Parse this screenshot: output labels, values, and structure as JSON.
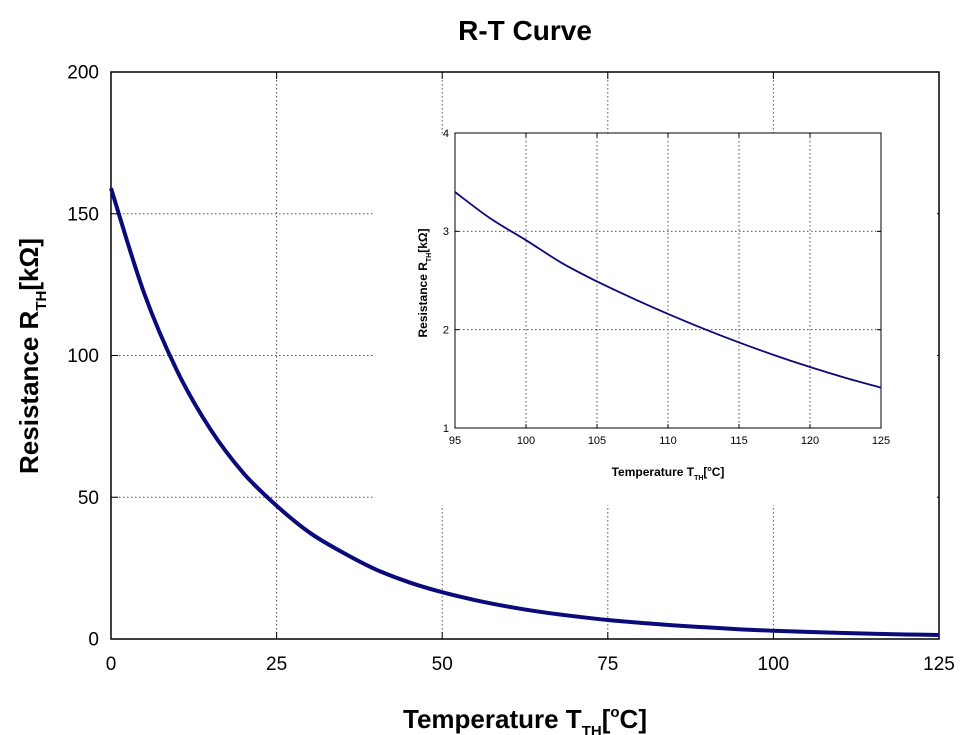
{
  "chart_data": [
    {
      "type": "line",
      "title": "R-T Curve",
      "xlabel": {
        "main": "Temperature T",
        "sub": "TH",
        "unit_pre": "[",
        "sup": "o",
        "unit_post": "C]"
      },
      "ylabel": {
        "main": "Resistance R",
        "sub": "TH",
        "unit": "[kΩ]"
      },
      "xlim": [
        0,
        125
      ],
      "ylim": [
        0,
        200
      ],
      "xticks": [
        0,
        25,
        50,
        75,
        100,
        125
      ],
      "yticks": [
        0,
        50,
        100,
        150,
        200
      ],
      "grid": true,
      "line_color": "#0a0a7a",
      "series": [
        {
          "x": [
            0,
            5,
            10,
            15,
            20,
            25,
            30,
            35,
            40,
            45,
            50,
            55,
            60,
            65,
            70,
            75,
            80,
            85,
            90,
            95,
            100,
            105,
            110,
            115,
            120,
            125
          ],
          "y": [
            159,
            122,
            94.5,
            74,
            58.5,
            47,
            37.5,
            30.5,
            24.5,
            20,
            16.5,
            13.7,
            11.4,
            9.5,
            8.0,
            6.7,
            5.7,
            4.8,
            4.1,
            3.4,
            2.9,
            2.5,
            2.15,
            1.85,
            1.6,
            1.4
          ]
        }
      ]
    },
    {
      "type": "line",
      "xlabel": {
        "main": "Temperature T",
        "sub": "TH",
        "unit_pre": "[",
        "sup": "o",
        "unit_post": "C]"
      },
      "ylabel": {
        "main": "Resistance R",
        "sub": "TH",
        "unit": "[kΩ]"
      },
      "xlim": [
        95,
        125
      ],
      "ylim": [
        1,
        4
      ],
      "xticks": [
        95,
        100,
        105,
        110,
        115,
        120,
        125
      ],
      "yticks": [
        1,
        2,
        3,
        4
      ],
      "grid": true,
      "line_color": "#0a0a7a",
      "series": [
        {
          "x": [
            95,
            97.5,
            100,
            102.5,
            105,
            107.5,
            110,
            112.5,
            115,
            117.5,
            120,
            122.5,
            125
          ],
          "y": [
            3.4,
            3.13,
            2.91,
            2.68,
            2.49,
            2.32,
            2.16,
            2.01,
            1.87,
            1.74,
            1.62,
            1.51,
            1.41
          ]
        }
      ]
    }
  ]
}
